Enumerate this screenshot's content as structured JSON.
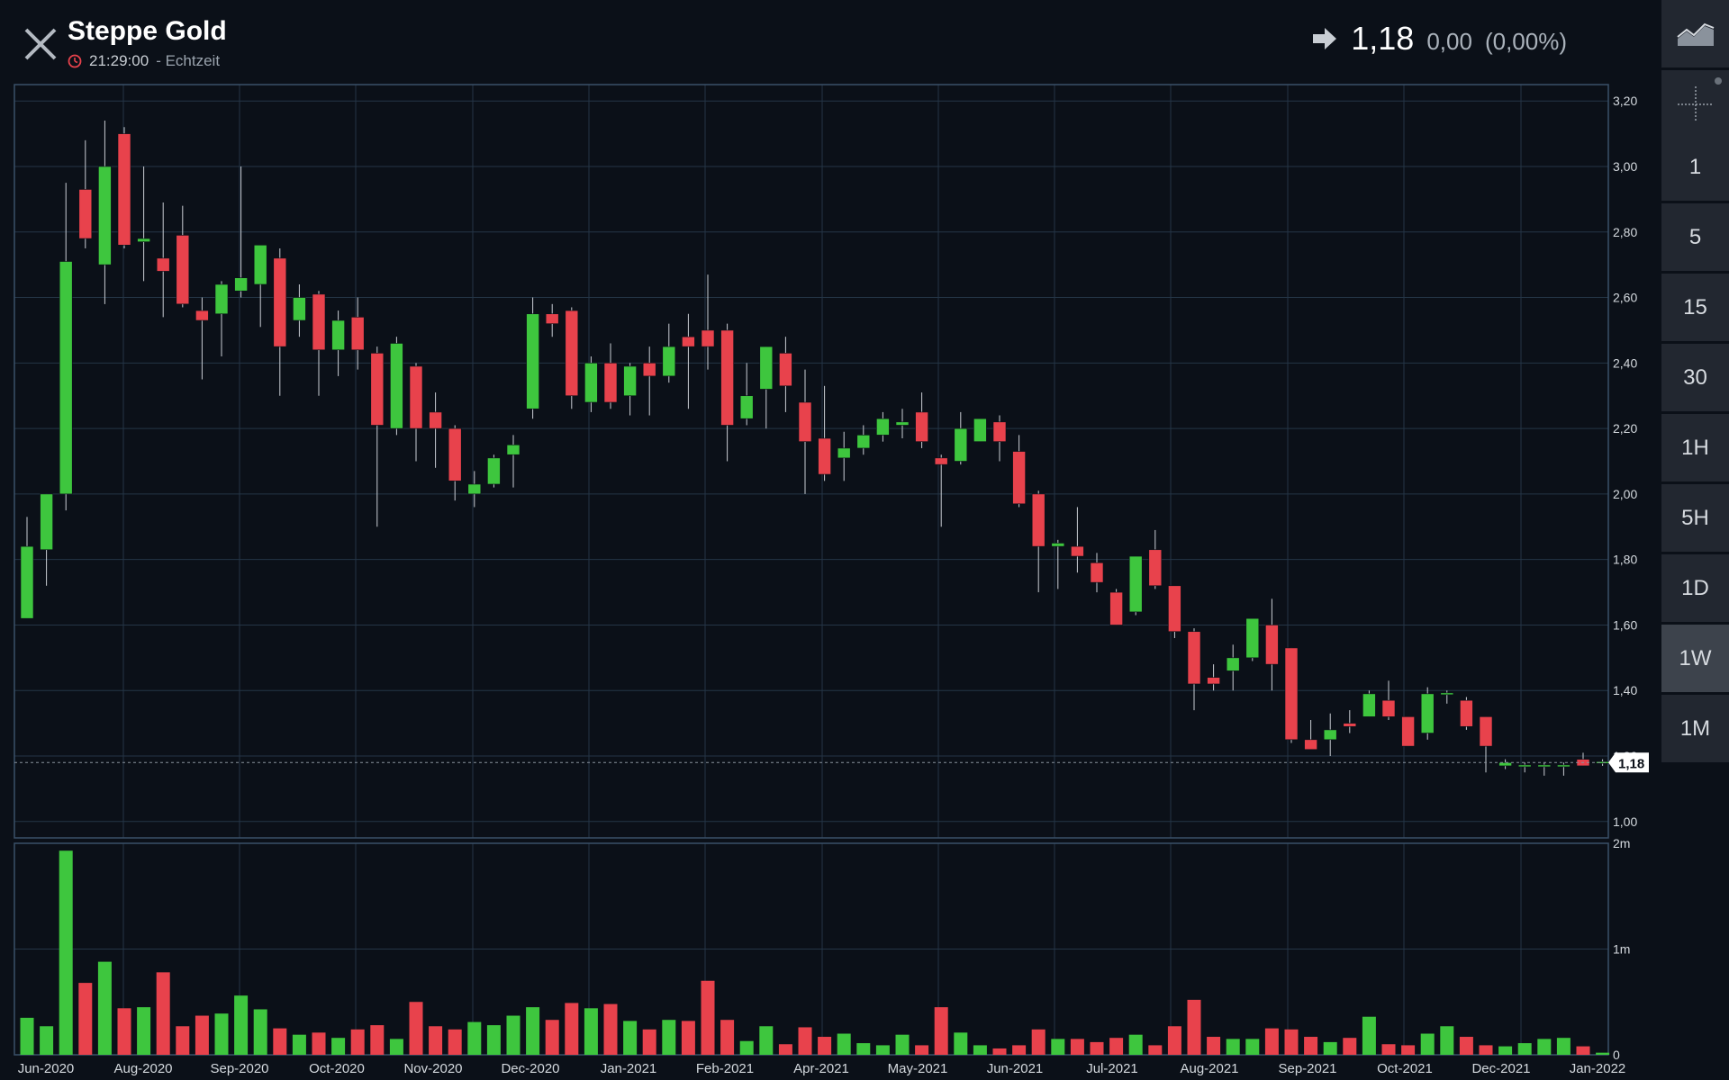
{
  "header": {
    "title": "Steppe Gold",
    "time": "21:29:00",
    "mode": "- Echtzeit",
    "price": "1,18",
    "change_abs": "0,00",
    "change_pct": "(0,00%)"
  },
  "sidebar": {
    "intervals": [
      "1",
      "5",
      "15",
      "30",
      "1H",
      "5H",
      "1D",
      "1W",
      "1M"
    ],
    "active": "1W"
  },
  "colors": {
    "up": "#3ec63e",
    "down": "#e8424c",
    "grid": "#243546",
    "background": "#0b1018"
  },
  "chart_data": {
    "type": "candlestick",
    "interval": "1W",
    "price_axis": {
      "ticks": [
        "1,00",
        "1,20",
        "1,40",
        "1,60",
        "1,80",
        "2,00",
        "2,20",
        "2,40",
        "2,60",
        "2,80",
        "3,00",
        "3,20"
      ],
      "ylim": [
        0.95,
        3.25
      ]
    },
    "volume_axis": {
      "ticks": [
        "0",
        "1m",
        "2m"
      ],
      "ylim": [
        0,
        2.0
      ]
    },
    "x_ticks": [
      "Jun-2020",
      "Aug-2020",
      "Sep-2020",
      "Oct-2020",
      "Nov-2020",
      "Dec-2020",
      "Jan-2021",
      "Feb-2021",
      "Apr-2021",
      "May-2021",
      "Jun-2021",
      "Jul-2021",
      "Aug-2021",
      "Sep-2021",
      "Oct-2021",
      "Dec-2021",
      "Jan-2022"
    ],
    "current_price_label": "1,18",
    "candles": [
      {
        "o": 1.62,
        "h": 1.93,
        "l": 1.62,
        "c": 1.84,
        "v": 0.35
      },
      {
        "o": 1.83,
        "h": 2.0,
        "l": 1.72,
        "c": 2.0,
        "v": 0.27
      },
      {
        "o": 2.0,
        "h": 2.95,
        "l": 1.95,
        "c": 2.71,
        "v": 1.93
      },
      {
        "o": 2.93,
        "h": 3.08,
        "l": 2.75,
        "c": 2.78,
        "v": 0.68
      },
      {
        "o": 2.7,
        "h": 3.14,
        "l": 2.58,
        "c": 3.0,
        "v": 0.88
      },
      {
        "o": 3.1,
        "h": 3.12,
        "l": 2.75,
        "c": 2.76,
        "v": 0.44
      },
      {
        "o": 2.77,
        "h": 3.0,
        "l": 2.65,
        "c": 2.78,
        "v": 0.45
      },
      {
        "o": 2.72,
        "h": 2.89,
        "l": 2.54,
        "c": 2.68,
        "v": 0.78
      },
      {
        "o": 2.79,
        "h": 2.88,
        "l": 2.57,
        "c": 2.58,
        "v": 0.27
      },
      {
        "o": 2.56,
        "h": 2.6,
        "l": 2.35,
        "c": 2.53,
        "v": 0.37
      },
      {
        "o": 2.55,
        "h": 2.65,
        "l": 2.42,
        "c": 2.64,
        "v": 0.39
      },
      {
        "o": 2.62,
        "h": 3.0,
        "l": 2.6,
        "c": 2.66,
        "v": 0.56
      },
      {
        "o": 2.64,
        "h": 2.76,
        "l": 2.51,
        "c": 2.76,
        "v": 0.43
      },
      {
        "o": 2.72,
        "h": 2.75,
        "l": 2.3,
        "c": 2.45,
        "v": 0.25
      },
      {
        "o": 2.53,
        "h": 2.64,
        "l": 2.48,
        "c": 2.6,
        "v": 0.19
      },
      {
        "o": 2.61,
        "h": 2.62,
        "l": 2.3,
        "c": 2.44,
        "v": 0.21
      },
      {
        "o": 2.44,
        "h": 2.56,
        "l": 2.36,
        "c": 2.53,
        "v": 0.16
      },
      {
        "o": 2.54,
        "h": 2.6,
        "l": 2.38,
        "c": 2.44,
        "v": 0.24
      },
      {
        "o": 2.43,
        "h": 2.45,
        "l": 1.9,
        "c": 2.21,
        "v": 0.28
      },
      {
        "o": 2.2,
        "h": 2.48,
        "l": 2.18,
        "c": 2.46,
        "v": 0.15
      },
      {
        "o": 2.39,
        "h": 2.4,
        "l": 2.1,
        "c": 2.2,
        "v": 0.5
      },
      {
        "o": 2.25,
        "h": 2.31,
        "l": 2.08,
        "c": 2.2,
        "v": 0.27
      },
      {
        "o": 2.2,
        "h": 2.21,
        "l": 1.98,
        "c": 2.04,
        "v": 0.24
      },
      {
        "o": 2.0,
        "h": 2.07,
        "l": 1.96,
        "c": 2.03,
        "v": 0.31
      },
      {
        "o": 2.03,
        "h": 2.12,
        "l": 2.02,
        "c": 2.11,
        "v": 0.28
      },
      {
        "o": 2.12,
        "h": 2.18,
        "l": 2.02,
        "c": 2.15,
        "v": 0.37
      },
      {
        "o": 2.26,
        "h": 2.6,
        "l": 2.23,
        "c": 2.55,
        "v": 0.45
      },
      {
        "o": 2.55,
        "h": 2.58,
        "l": 2.48,
        "c": 2.52,
        "v": 0.33
      },
      {
        "o": 2.56,
        "h": 2.57,
        "l": 2.26,
        "c": 2.3,
        "v": 0.49
      },
      {
        "o": 2.28,
        "h": 2.42,
        "l": 2.25,
        "c": 2.4,
        "v": 0.44
      },
      {
        "o": 2.4,
        "h": 2.46,
        "l": 2.26,
        "c": 2.28,
        "v": 0.48
      },
      {
        "o": 2.3,
        "h": 2.4,
        "l": 2.24,
        "c": 2.39,
        "v": 0.32
      },
      {
        "o": 2.4,
        "h": 2.45,
        "l": 2.24,
        "c": 2.36,
        "v": 0.24
      },
      {
        "o": 2.36,
        "h": 2.52,
        "l": 2.34,
        "c": 2.45,
        "v": 0.33
      },
      {
        "o": 2.48,
        "h": 2.55,
        "l": 2.26,
        "c": 2.45,
        "v": 0.32
      },
      {
        "o": 2.5,
        "h": 2.67,
        "l": 2.38,
        "c": 2.45,
        "v": 0.7
      },
      {
        "o": 2.5,
        "h": 2.52,
        "l": 2.1,
        "c": 2.21,
        "v": 0.33
      },
      {
        "o": 2.23,
        "h": 2.4,
        "l": 2.21,
        "c": 2.3,
        "v": 0.13
      },
      {
        "o": 2.32,
        "h": 2.45,
        "l": 2.2,
        "c": 2.45,
        "v": 0.27
      },
      {
        "o": 2.43,
        "h": 2.48,
        "l": 2.25,
        "c": 2.33,
        "v": 0.1
      },
      {
        "o": 2.28,
        "h": 2.38,
        "l": 2.0,
        "c": 2.16,
        "v": 0.26
      },
      {
        "o": 2.17,
        "h": 2.33,
        "l": 2.04,
        "c": 2.06,
        "v": 0.17
      },
      {
        "o": 2.11,
        "h": 2.19,
        "l": 2.04,
        "c": 2.14,
        "v": 0.2
      },
      {
        "o": 2.14,
        "h": 2.21,
        "l": 2.12,
        "c": 2.18,
        "v": 0.11
      },
      {
        "o": 2.18,
        "h": 2.25,
        "l": 2.16,
        "c": 2.23,
        "v": 0.09
      },
      {
        "o": 2.21,
        "h": 2.26,
        "l": 2.17,
        "c": 2.22,
        "v": 0.19
      },
      {
        "o": 2.25,
        "h": 2.31,
        "l": 2.14,
        "c": 2.16,
        "v": 0.09
      },
      {
        "o": 2.11,
        "h": 2.12,
        "l": 1.9,
        "c": 2.09,
        "v": 0.45
      },
      {
        "o": 2.1,
        "h": 2.25,
        "l": 2.09,
        "c": 2.2,
        "v": 0.21
      },
      {
        "o": 2.16,
        "h": 2.23,
        "l": 2.16,
        "c": 2.23,
        "v": 0.09
      },
      {
        "o": 2.22,
        "h": 2.24,
        "l": 2.1,
        "c": 2.16,
        "v": 0.06
      },
      {
        "o": 2.13,
        "h": 2.18,
        "l": 1.96,
        "c": 1.97,
        "v": 0.09
      },
      {
        "o": 2.0,
        "h": 2.01,
        "l": 1.7,
        "c": 1.84,
        "v": 0.24
      },
      {
        "o": 1.84,
        "h": 1.86,
        "l": 1.71,
        "c": 1.85,
        "v": 0.15
      },
      {
        "o": 1.84,
        "h": 1.96,
        "l": 1.76,
        "c": 1.81,
        "v": 0.15
      },
      {
        "o": 1.79,
        "h": 1.82,
        "l": 1.7,
        "c": 1.73,
        "v": 0.12
      },
      {
        "o": 1.7,
        "h": 1.71,
        "l": 1.6,
        "c": 1.6,
        "v": 0.16
      },
      {
        "o": 1.64,
        "h": 1.81,
        "l": 1.63,
        "c": 1.81,
        "v": 0.19
      },
      {
        "o": 1.83,
        "h": 1.89,
        "l": 1.71,
        "c": 1.72,
        "v": 0.09
      },
      {
        "o": 1.72,
        "h": 1.72,
        "l": 1.56,
        "c": 1.58,
        "v": 0.27
      },
      {
        "o": 1.58,
        "h": 1.59,
        "l": 1.34,
        "c": 1.42,
        "v": 0.52
      },
      {
        "o": 1.44,
        "h": 1.48,
        "l": 1.4,
        "c": 1.42,
        "v": 0.17
      },
      {
        "o": 1.46,
        "h": 1.54,
        "l": 1.4,
        "c": 1.5,
        "v": 0.15
      },
      {
        "o": 1.5,
        "h": 1.62,
        "l": 1.49,
        "c": 1.62,
        "v": 0.15
      },
      {
        "o": 1.6,
        "h": 1.68,
        "l": 1.4,
        "c": 1.48,
        "v": 0.25
      },
      {
        "o": 1.53,
        "h": 1.53,
        "l": 1.24,
        "c": 1.25,
        "v": 0.24
      },
      {
        "o": 1.25,
        "h": 1.31,
        "l": 1.22,
        "c": 1.22,
        "v": 0.17
      },
      {
        "o": 1.25,
        "h": 1.33,
        "l": 1.2,
        "c": 1.28,
        "v": 0.12
      },
      {
        "o": 1.3,
        "h": 1.34,
        "l": 1.27,
        "c": 1.29,
        "v": 0.16
      },
      {
        "o": 1.32,
        "h": 1.4,
        "l": 1.32,
        "c": 1.39,
        "v": 0.36
      },
      {
        "o": 1.37,
        "h": 1.43,
        "l": 1.31,
        "c": 1.32,
        "v": 0.1
      },
      {
        "o": 1.32,
        "h": 1.32,
        "l": 1.23,
        "c": 1.23,
        "v": 0.09
      },
      {
        "o": 1.27,
        "h": 1.41,
        "l": 1.25,
        "c": 1.39,
        "v": 0.2
      },
      {
        "o": 1.39,
        "h": 1.4,
        "l": 1.36,
        "c": 1.39,
        "v": 0.27
      },
      {
        "o": 1.37,
        "h": 1.38,
        "l": 1.28,
        "c": 1.29,
        "v": 0.17
      },
      {
        "o": 1.32,
        "h": 1.32,
        "l": 1.15,
        "c": 1.23,
        "v": 0.09
      },
      {
        "o": 1.17,
        "h": 1.19,
        "l": 1.16,
        "c": 1.18,
        "v": 0.08
      },
      {
        "o": 1.17,
        "h": 1.18,
        "l": 1.15,
        "c": 1.17,
        "v": 0.11
      },
      {
        "o": 1.17,
        "h": 1.18,
        "l": 1.14,
        "c": 1.17,
        "v": 0.15
      },
      {
        "o": 1.17,
        "h": 1.18,
        "l": 1.14,
        "c": 1.17,
        "v": 0.16
      },
      {
        "o": 1.19,
        "h": 1.21,
        "l": 1.17,
        "c": 1.17,
        "v": 0.08
      },
      {
        "o": 1.18,
        "h": 1.19,
        "l": 1.17,
        "c": 1.18,
        "v": 0.02
      }
    ]
  }
}
